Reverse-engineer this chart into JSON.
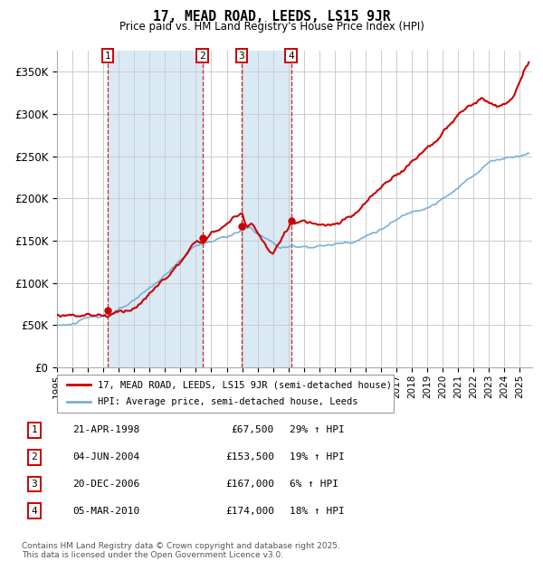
{
  "title": "17, MEAD ROAD, LEEDS, LS15 9JR",
  "subtitle": "Price paid vs. HM Land Registry's House Price Index (HPI)",
  "transactions": [
    {
      "num": 1,
      "date": "21-APR-1998",
      "price": 67500,
      "year": 1998.3,
      "pct": "29%",
      "dir": "↑"
    },
    {
      "num": 2,
      "date": "04-JUN-2004",
      "price": 153500,
      "year": 2004.42,
      "pct": "19%",
      "dir": "↑"
    },
    {
      "num": 3,
      "date": "20-DEC-2006",
      "price": 167000,
      "year": 2006.96,
      "pct": "6%",
      "dir": "↑"
    },
    {
      "num": 4,
      "date": "05-MAR-2010",
      "price": 174000,
      "year": 2010.17,
      "pct": "18%",
      "dir": "↑"
    }
  ],
  "legend_house": "17, MEAD ROAD, LEEDS, LS15 9JR (semi-detached house)",
  "legend_hpi": "HPI: Average price, semi-detached house, Leeds",
  "footer": "Contains HM Land Registry data © Crown copyright and database right 2025.\nThis data is licensed under the Open Government Licence v3.0.",
  "house_color": "#cc0000",
  "hpi_color": "#7ab0d4",
  "vline_color": "#cc0000",
  "shade_color": "#daeaf5",
  "grid_color": "#cccccc",
  "ylim": [
    0,
    375000
  ],
  "xlim_start": 1995.0,
  "xlim_end": 2025.8,
  "yticks": [
    0,
    50000,
    100000,
    150000,
    200000,
    250000,
    300000,
    350000
  ],
  "ytick_labels": [
    "£0",
    "£50K",
    "£100K",
    "£150K",
    "£200K",
    "£250K",
    "£300K",
    "£350K"
  ]
}
